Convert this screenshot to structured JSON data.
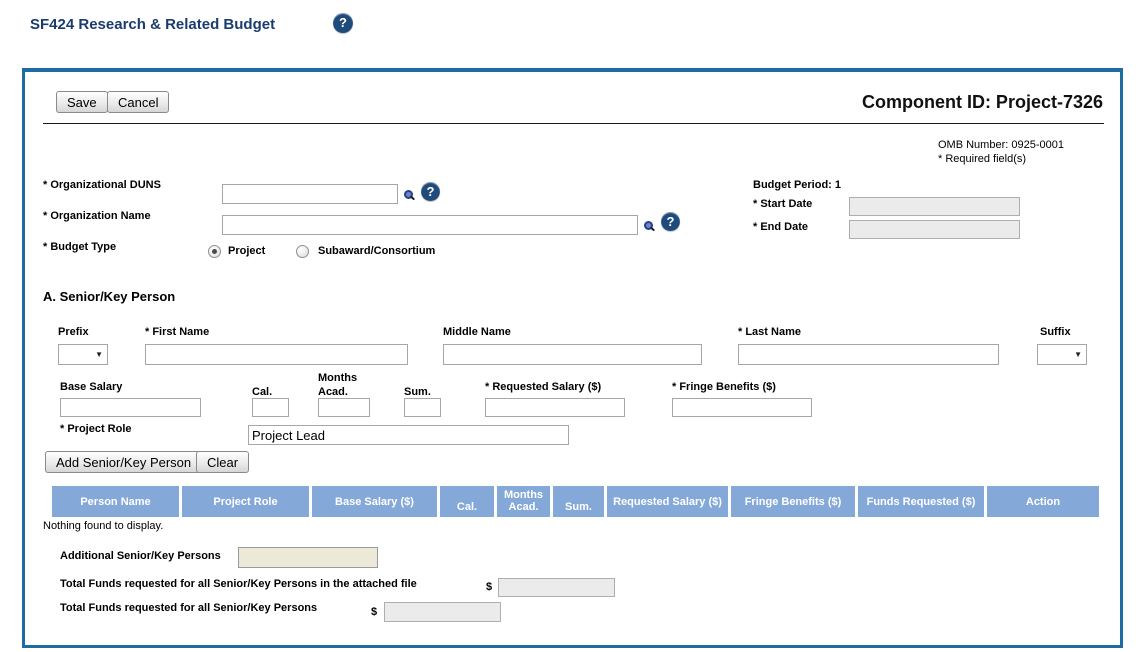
{
  "header": {
    "title": "SF424 Research & Related Budget",
    "help_glyph": "?"
  },
  "icons": {
    "select_arrow": "▼"
  },
  "panel": {
    "toolbar": {
      "save_label": "Save",
      "cancel_label": "Cancel"
    },
    "component_id": "Component ID: Project-7326",
    "omb_number": "OMB Number: 0925-0001",
    "required_note": "* Required field(s)",
    "org": {
      "duns_label": "* Organizational DUNS",
      "name_label": "* Organization Name",
      "budget_type_label": "* Budget Type",
      "radio_project_label": "Project",
      "radio_subaward_label": "Subaward/Consortium"
    },
    "budget_period": {
      "label": "Budget Period: 1",
      "start_label": "* Start Date",
      "end_label": "* End Date",
      "start_value": "",
      "end_value": ""
    },
    "section_a": {
      "title": "A. Senior/Key Person",
      "prefix_label": "Prefix",
      "first_name_label": "* First Name",
      "middle_name_label": "Middle Name",
      "last_name_label": "* Last Name",
      "suffix_label": "Suffix",
      "base_salary_label": "Base Salary",
      "cal_label": "Cal.",
      "months_label": "Months",
      "acad_label": "Acad.",
      "sum_label": "Sum.",
      "requested_salary_label": "* Requested Salary ($)",
      "fringe_label": "* Fringe Benefits ($)",
      "project_role_label": "* Project Role",
      "project_role_value": "Project Lead",
      "add_button_label": "Add Senior/Key Person",
      "clear_button_label": "Clear"
    },
    "table": {
      "columns": [
        "Person Name",
        "Project Role",
        "Base Salary ($)",
        "Cal.",
        "Months Acad.",
        "Sum.",
        "Requested Salary ($)",
        "Fringe Benefits ($)",
        "Funds Requested ($)",
        "Action"
      ],
      "empty_text": "Nothing found to display."
    },
    "totals": {
      "additional_label": "Additional Senior/Key Persons",
      "additional_value": "",
      "attached_total_label": "Total Funds requested for all Senior/Key Persons in the attached file",
      "grand_total_label": "Total Funds requested for all Senior/Key Persons",
      "currency": "$",
      "attached_total_value": "",
      "grand_total_value": ""
    }
  },
  "colors": {
    "title_navy": "#1b3c6e",
    "panel_border": "#1d6da1",
    "table_header_blue": "#84a9d8",
    "help_icon_bg": "#1f4a7c",
    "beige_field": "#ece9d8",
    "disabled_field": "#ebebeb"
  }
}
